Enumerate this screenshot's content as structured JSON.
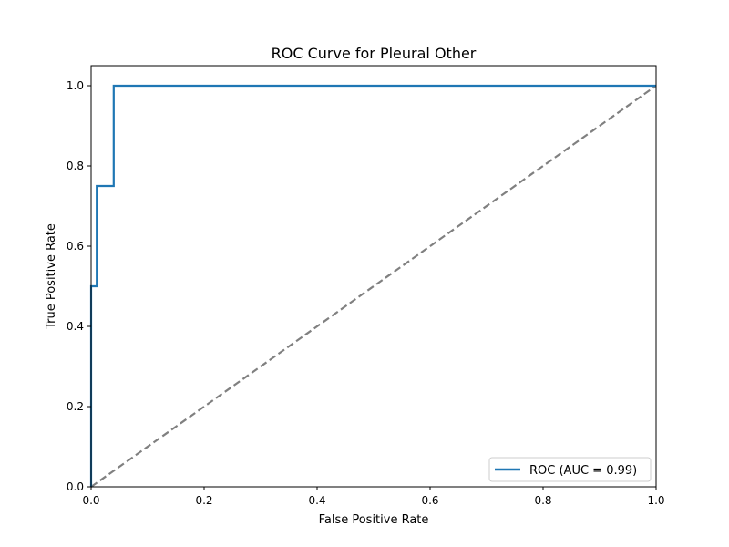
{
  "chart_data": {
    "type": "line",
    "title": "ROC Curve for Pleural Other",
    "xlabel": "False Positive Rate",
    "ylabel": "True Positive Rate",
    "xlim": [
      0.0,
      1.0
    ],
    "ylim": [
      0.0,
      1.05
    ],
    "x_ticks": [
      "0.0",
      "0.2",
      "0.4",
      "0.6",
      "0.8",
      "1.0"
    ],
    "y_ticks": [
      "0.0",
      "0.2",
      "0.4",
      "0.6",
      "0.8",
      "1.0"
    ],
    "grid": false,
    "legend_position": "lower-right",
    "series": [
      {
        "name": "ROC (AUC = 0.99)",
        "color": "#1f77b4",
        "style": "solid",
        "x": [
          0.0,
          0.0,
          0.01,
          0.01,
          0.04,
          0.04,
          1.0
        ],
        "y": [
          0.0,
          0.5,
          0.5,
          0.75,
          0.75,
          1.0,
          1.0
        ]
      },
      {
        "color": "#808080",
        "style": "dashed",
        "x": [
          0.0,
          1.0
        ],
        "y": [
          0.0,
          1.0
        ]
      }
    ]
  }
}
